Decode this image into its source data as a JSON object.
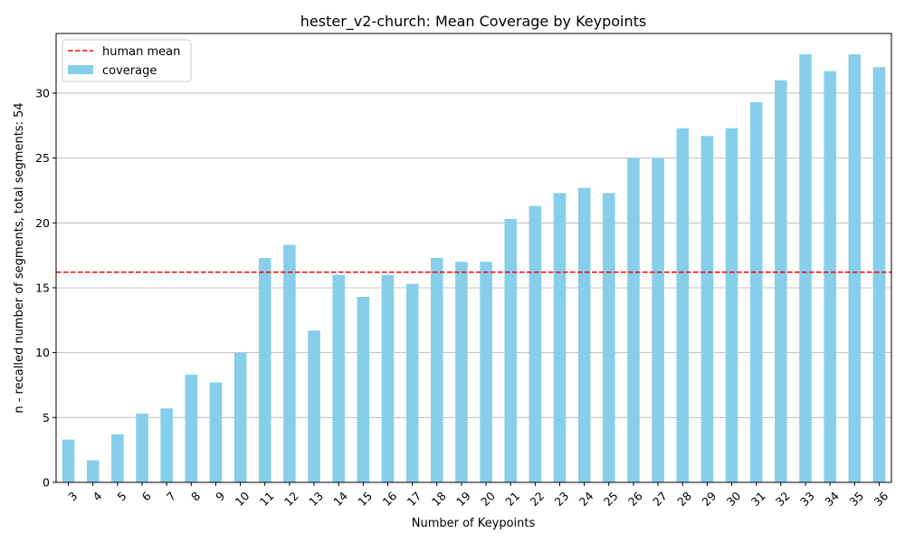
{
  "chart_data": {
    "type": "bar",
    "title": "hester_v2-church: Mean Coverage by Keypoints",
    "xlabel": "Number of Keypoints",
    "ylabel": "n - recalled number of segments, total segments: 54",
    "categories": [
      "3",
      "4",
      "5",
      "6",
      "7",
      "8",
      "9",
      "10",
      "11",
      "12",
      "13",
      "14",
      "15",
      "16",
      "17",
      "18",
      "19",
      "20",
      "21",
      "22",
      "23",
      "24",
      "25",
      "26",
      "27",
      "28",
      "29",
      "30",
      "31",
      "32",
      "33",
      "34",
      "35",
      "36"
    ],
    "series": [
      {
        "name": "coverage",
        "color": "#87ceeb",
        "values": [
          3.3,
          1.7,
          3.7,
          5.3,
          5.7,
          8.3,
          7.7,
          10.0,
          17.3,
          18.3,
          11.7,
          16.0,
          14.3,
          16.0,
          15.3,
          17.3,
          17.0,
          17.0,
          20.3,
          21.3,
          22.3,
          22.7,
          22.3,
          25.0,
          25.0,
          27.3,
          26.7,
          27.3,
          29.3,
          31.0,
          33.0,
          31.7,
          33.0,
          32.0
        ]
      }
    ],
    "reference_line": {
      "name": "human mean",
      "value": 16.2,
      "color": "#ff0000",
      "style": "dashed"
    },
    "ylim": [
      0,
      34.6
    ],
    "yticks": [
      0,
      5,
      10,
      15,
      20,
      25,
      30
    ],
    "grid": "y",
    "legend_position": "top-left",
    "legend": [
      "human mean",
      "coverage"
    ]
  }
}
